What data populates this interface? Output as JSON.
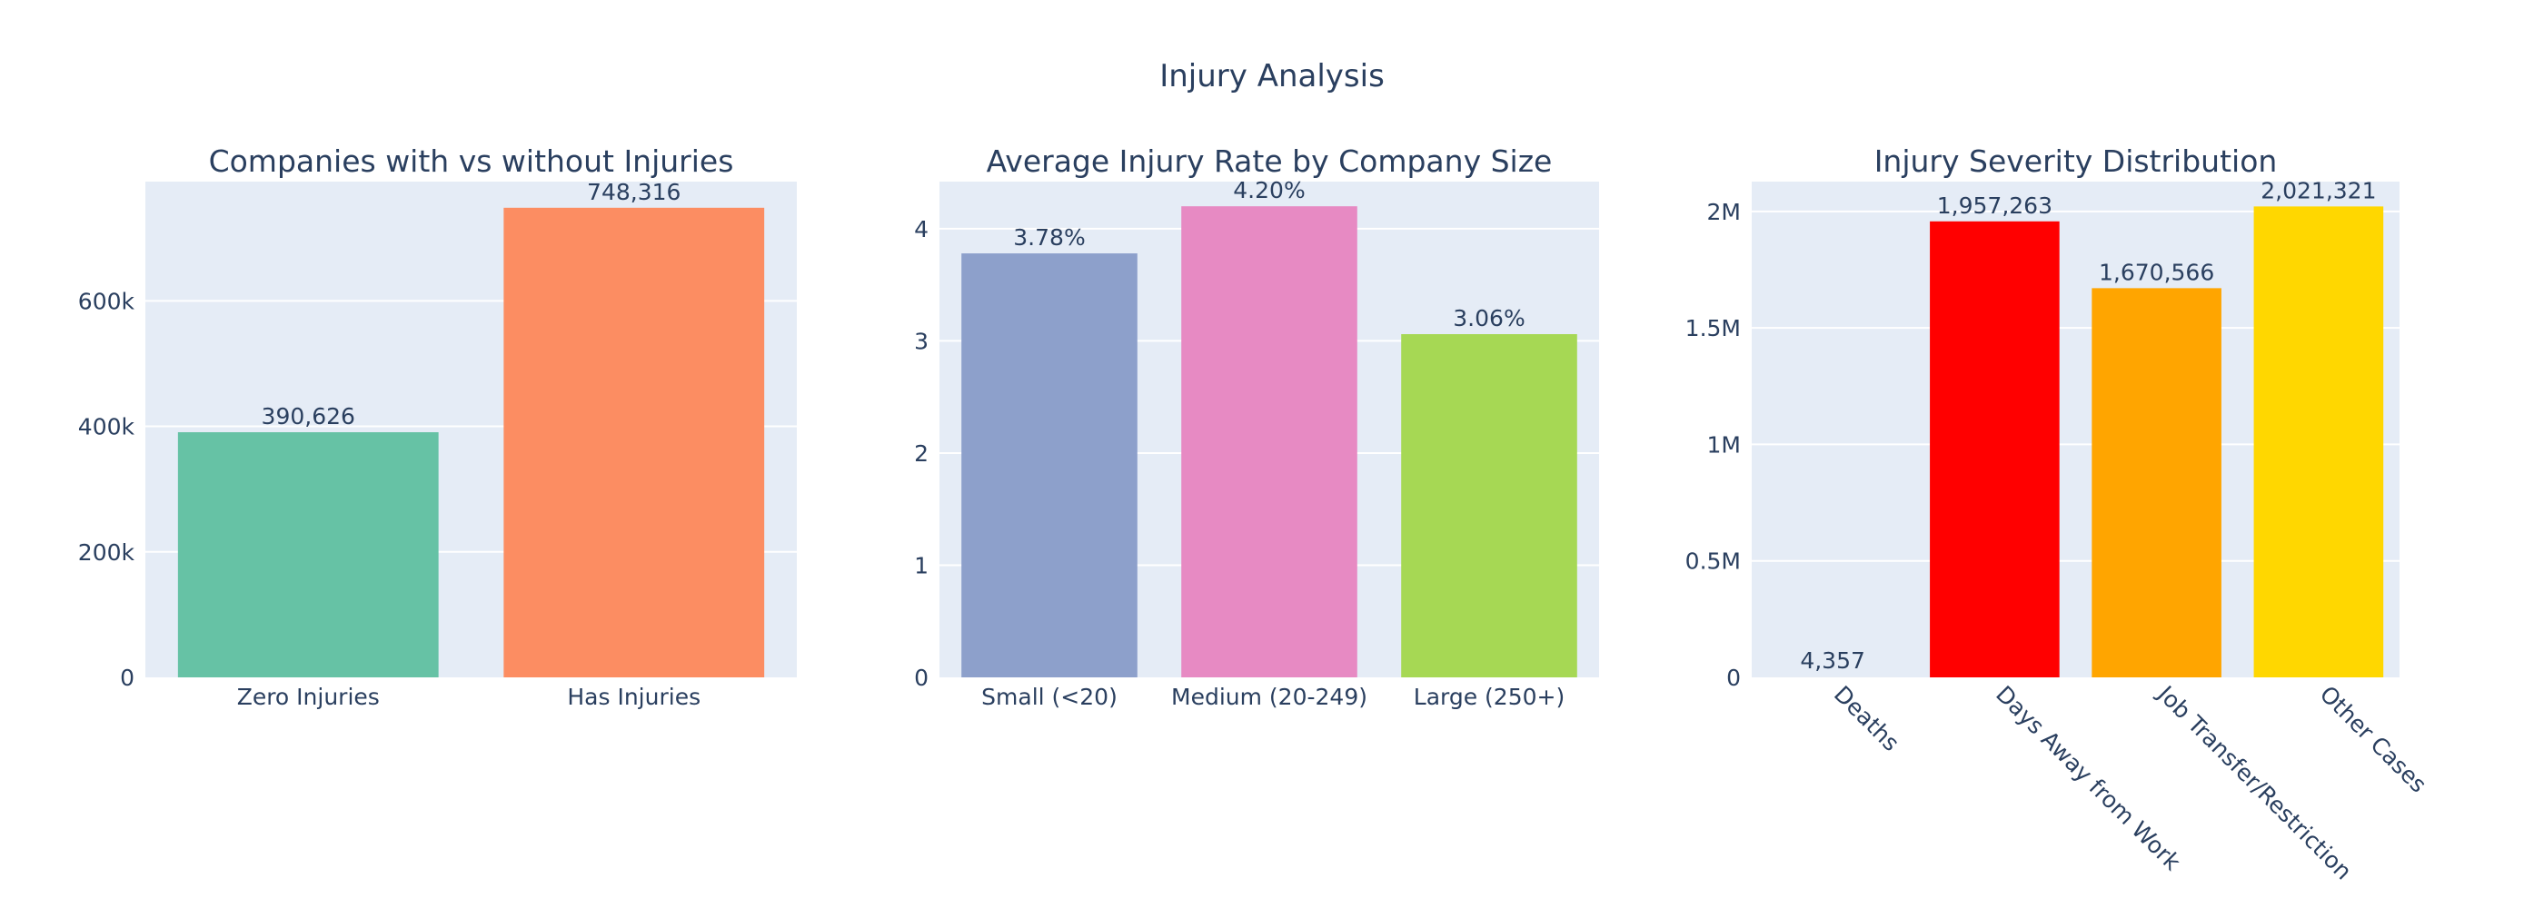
{
  "figure": {
    "title": "Injury Analysis"
  },
  "chart_data": [
    {
      "type": "bar",
      "title": "Companies with vs without Injuries",
      "categories": [
        "Zero Injuries",
        "Has Injuries"
      ],
      "values": [
        390626,
        748316
      ],
      "value_labels": [
        "390,626",
        "748,316"
      ],
      "colors": [
        "#66c2a5",
        "#fc8d62"
      ],
      "ylim": [
        0,
        790000
      ],
      "yticks": [
        0,
        200000,
        400000,
        600000
      ],
      "ytick_labels": [
        "0",
        "200k",
        "400k",
        "600k"
      ],
      "grid": true,
      "tick_rotation": 0,
      "xlabel": "",
      "ylabel": ""
    },
    {
      "type": "bar",
      "title": "Average Injury Rate by Company Size",
      "categories": [
        "Small (<20)",
        "Medium (20-249)",
        "Large (250+)"
      ],
      "values": [
        3.78,
        4.2,
        3.06
      ],
      "value_labels": [
        "3.78%",
        "4.20%",
        "3.06%"
      ],
      "colors": [
        "#8da0cb",
        "#e78ac3",
        "#a6d854"
      ],
      "ylim": [
        0,
        4.42
      ],
      "yticks": [
        0,
        1,
        2,
        3,
        4
      ],
      "ytick_labels": [
        "0",
        "1",
        "2",
        "3",
        "4"
      ],
      "grid": true,
      "tick_rotation": 0,
      "xlabel": "",
      "ylabel": ""
    },
    {
      "type": "bar",
      "title": "Injury Severity Distribution",
      "categories": [
        "Deaths",
        "Days Away from Work",
        "Job Transfer/Restriction",
        "Other Cases"
      ],
      "values": [
        4357,
        1957263,
        1670566,
        2021321
      ],
      "value_labels": [
        "4,357",
        "1,957,263",
        "1,670,566",
        "2,021,321"
      ],
      "colors": [
        "#e6ecf5",
        "#ff0000",
        "#ffa500",
        "#ffd700"
      ],
      "ylim": [
        0,
        2128000
      ],
      "yticks": [
        0,
        500000,
        1000000,
        1500000,
        2000000
      ],
      "ytick_labels": [
        "0",
        "0.5M",
        "1M",
        "1.5M",
        "2M"
      ],
      "grid": true,
      "tick_rotation": 45,
      "xlabel": "",
      "ylabel": ""
    }
  ]
}
